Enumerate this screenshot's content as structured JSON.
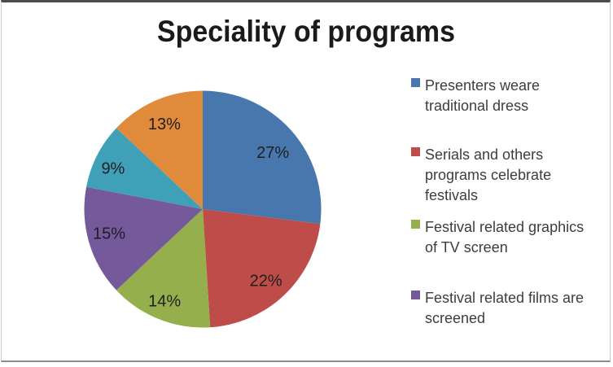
{
  "chart_data": {
    "type": "pie",
    "title": "Speciality of programs",
    "categories": [
      "Presenters weare traditional dress",
      "Serials and others programs celebrate festivals",
      "Festival related graphics of TV screen",
      "Festival related films are screened",
      "",
      ""
    ],
    "values": [
      27,
      22,
      14,
      15,
      9,
      13
    ],
    "slice_labels": [
      "27%",
      "22%",
      "14%",
      "15%",
      "9%",
      "13%"
    ],
    "colors": [
      "#4877AE",
      "#BE4C49",
      "#94AF4C",
      "#74599B",
      "#3FA0B8",
      "#E08A3C"
    ],
    "label_position": "inside",
    "legend_position": "right",
    "legend_items": [
      {
        "label": "Presenters weare\ntraditional dress"
      },
      {
        "label": "Serials and others\nprograms celebrate\nfestivals"
      },
      {
        "label": "Festival related graphics\nof TV screen"
      },
      {
        "label": "Festival related films are\nscreened"
      }
    ]
  }
}
